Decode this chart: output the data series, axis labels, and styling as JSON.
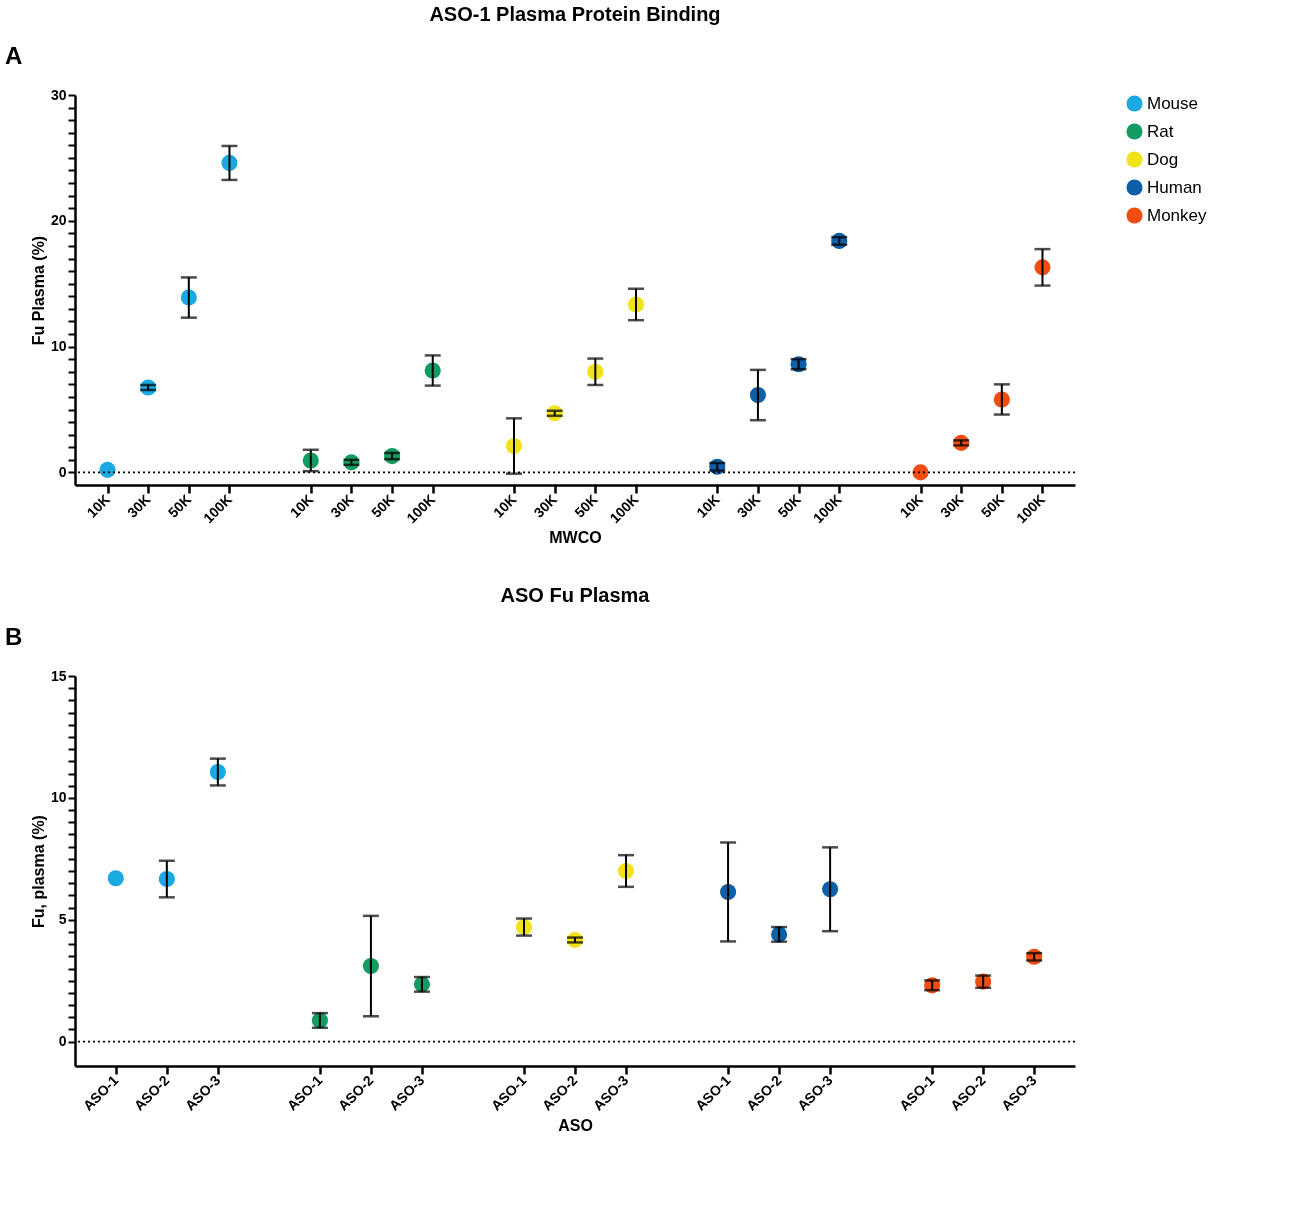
{
  "chart_data": [
    {
      "type": "scatter",
      "title": "ASO-1 Plasma Protein Binding",
      "xlabel": "MWCO",
      "ylabel": "Fu Plasma (%)",
      "annotations": [
        "A"
      ],
      "categories": [
        "10K",
        "30K",
        "50K",
        "100K",
        null,
        "10K",
        "30K",
        "50K",
        "100K",
        null,
        "10K",
        "30K",
        "50K",
        "100K",
        null,
        "10K",
        "30K",
        "50K",
        "100K",
        null,
        "10K",
        "30K",
        "50K",
        "100K"
      ],
      "series": [
        {
          "name": "Mouse",
          "color": "#1ba9e1",
          "values": [
            0.2,
            6.75,
            13.9,
            24.6,
            null,
            null,
            null,
            null,
            null,
            null,
            null,
            null,
            null,
            null,
            null,
            null,
            null,
            null,
            null,
            null,
            null,
            null,
            null,
            null
          ],
          "errors": [
            null,
            0.2,
            1.6,
            1.35,
            null,
            null,
            null,
            null,
            null,
            null,
            null,
            null,
            null,
            null,
            null,
            null,
            null,
            null,
            null,
            null,
            null,
            null,
            null,
            null
          ]
        },
        {
          "name": "Rat",
          "color": "#139b61",
          "values": [
            null,
            null,
            null,
            null,
            null,
            0.95,
            0.8,
            1.3,
            8.1,
            null,
            null,
            null,
            null,
            null,
            null,
            null,
            null,
            null,
            null,
            null,
            null,
            null,
            null,
            null
          ],
          "errors": [
            null,
            null,
            null,
            null,
            null,
            0.85,
            0.2,
            0.25,
            1.2,
            null,
            null,
            null,
            null,
            null,
            null,
            null,
            null,
            null,
            null,
            null,
            null,
            null,
            null,
            null
          ]
        },
        {
          "name": "Dog",
          "color": "#f0e31a",
          "values": [
            null,
            null,
            null,
            null,
            null,
            null,
            null,
            null,
            null,
            null,
            2.1,
            4.7,
            8.0,
            13.35,
            null,
            null,
            null,
            null,
            null,
            null,
            null,
            null,
            null,
            null
          ],
          "errors": [
            null,
            null,
            null,
            null,
            null,
            null,
            null,
            null,
            null,
            null,
            2.2,
            0.2,
            1.05,
            1.25,
            null,
            null,
            null,
            null,
            null,
            null,
            null,
            null,
            null,
            null
          ]
        },
        {
          "name": "Human",
          "color": "#0e5fa8",
          "values": [
            null,
            null,
            null,
            null,
            null,
            null,
            null,
            null,
            null,
            null,
            null,
            null,
            null,
            null,
            null,
            0.45,
            6.15,
            8.6,
            18.4,
            null,
            null,
            null,
            null,
            null
          ],
          "errors": [
            null,
            null,
            null,
            null,
            null,
            null,
            null,
            null,
            null,
            null,
            null,
            null,
            null,
            null,
            null,
            0.3,
            2.0,
            0.4,
            0.3,
            null,
            null,
            null,
            null,
            null
          ]
        },
        {
          "name": "Monkey",
          "color": "#ef4d12",
          "values": [
            null,
            null,
            null,
            null,
            null,
            null,
            null,
            null,
            null,
            null,
            null,
            null,
            null,
            null,
            null,
            null,
            null,
            null,
            null,
            null,
            0.0,
            2.35,
            5.8,
            16.3
          ],
          "errors": [
            null,
            null,
            null,
            null,
            null,
            null,
            null,
            null,
            null,
            null,
            null,
            null,
            null,
            null,
            null,
            null,
            null,
            null,
            null,
            null,
            null,
            0.2,
            1.2,
            1.45
          ]
        }
      ],
      "ylim": [
        -1,
        30
      ],
      "yticks": [
        0,
        {
          "value": 1,
          "label": null
        },
        {
          "value": 2,
          "label": null
        },
        {
          "value": 3,
          "label": null
        },
        {
          "value": 4,
          "label": null
        },
        {
          "value": 5,
          "label": null
        },
        {
          "value": 6,
          "label": null
        },
        {
          "value": 7,
          "label": null
        },
        {
          "value": 8,
          "label": null
        },
        {
          "value": 9,
          "label": null
        },
        10,
        {
          "value": 11,
          "label": null
        },
        {
          "value": 12,
          "label": null
        },
        {
          "value": 13,
          "label": null
        },
        {
          "value": 14,
          "label": null
        },
        {
          "value": 15,
          "label": null
        },
        {
          "value": 16,
          "label": null
        },
        {
          "value": 17,
          "label": null
        },
        {
          "value": 18,
          "label": null
        },
        {
          "value": 19,
          "label": null
        },
        20,
        {
          "value": 21,
          "label": null
        },
        {
          "value": 22,
          "label": null
        },
        {
          "value": 23,
          "label": null
        },
        {
          "value": 24,
          "label": null
        },
        {
          "value": 25,
          "label": null
        },
        {
          "value": 26,
          "label": null
        },
        {
          "value": 27,
          "label": null
        },
        {
          "value": 28,
          "label": null
        },
        {
          "value": 29,
          "label": null
        },
        30
      ],
      "ref_lines": [
        {
          "axis": "y",
          "value": 0,
          "line_style": "dotted"
        }
      ],
      "legend": "right",
      "marker": "circle"
    },
    {
      "type": "scatter",
      "title": "ASO Fu Plasma",
      "xlabel": "ASO",
      "ylabel": "Fu, plasma (%)",
      "annotations": [
        "B"
      ],
      "categories": [
        "ASO-1",
        "ASO-2",
        "ASO-3",
        null,
        "ASO-1",
        "ASO-2",
        "ASO-3",
        null,
        "ASO-1",
        "ASO-2",
        "ASO-3",
        null,
        "ASO-1",
        "ASO-2",
        "ASO-3",
        null,
        "ASO-1",
        "ASO-2",
        "ASO-3"
      ],
      "series": [
        {
          "name": "Mouse",
          "color": "#1ba9e1",
          "values": [
            6.7,
            6.67,
            11.06,
            null,
            null,
            null,
            null,
            null,
            null,
            null,
            null,
            null,
            null,
            null,
            null,
            null,
            null,
            null,
            null
          ],
          "errors": [
            null,
            0.75,
            0.55,
            null,
            null,
            null,
            null,
            null,
            null,
            null,
            null,
            null,
            null,
            null,
            null,
            null,
            null,
            null,
            null
          ]
        },
        {
          "name": "Rat",
          "color": "#139b61",
          "values": [
            null,
            null,
            null,
            null,
            0.87,
            3.1,
            2.35,
            null,
            null,
            null,
            null,
            null,
            null,
            null,
            null,
            null,
            null,
            null,
            null
          ],
          "errors": [
            null,
            null,
            null,
            null,
            0.3,
            2.06,
            0.3,
            null,
            null,
            null,
            null,
            null,
            null,
            null,
            null,
            null,
            null,
            null,
            null
          ]
        },
        {
          "name": "Dog",
          "color": "#f0e31a",
          "values": [
            null,
            null,
            null,
            null,
            null,
            null,
            null,
            null,
            4.7,
            4.17,
            7.0,
            null,
            null,
            null,
            null,
            null,
            null,
            null,
            null
          ],
          "errors": [
            null,
            null,
            null,
            null,
            null,
            null,
            null,
            null,
            0.35,
            0.1,
            0.65,
            null,
            null,
            null,
            null,
            null,
            null,
            null,
            null
          ]
        },
        {
          "name": "Human",
          "color": "#0e5fa8",
          "values": [
            null,
            null,
            null,
            null,
            null,
            null,
            null,
            null,
            null,
            null,
            null,
            null,
            6.14,
            4.4,
            6.25,
            null,
            null,
            null,
            null
          ],
          "errors": [
            null,
            null,
            null,
            null,
            null,
            null,
            null,
            null,
            null,
            null,
            null,
            null,
            2.03,
            0.3,
            1.72,
            null,
            null,
            null,
            null
          ]
        },
        {
          "name": "Monkey",
          "color": "#ef4d12",
          "values": [
            null,
            null,
            null,
            null,
            null,
            null,
            null,
            null,
            null,
            null,
            null,
            null,
            null,
            null,
            null,
            null,
            2.31,
            2.46,
            3.48
          ],
          "errors": [
            null,
            null,
            null,
            null,
            null,
            null,
            null,
            null,
            null,
            null,
            null,
            null,
            null,
            null,
            null,
            null,
            0.2,
            0.25,
            0.15
          ]
        }
      ],
      "ylim": [
        -1,
        15
      ],
      "yticks": [
        0,
        {
          "value": 0.5,
          "label": null
        },
        {
          "value": 1,
          "label": null
        },
        {
          "value": 1.5,
          "label": null
        },
        {
          "value": 2,
          "label": null
        },
        {
          "value": 2.5,
          "label": null
        },
        {
          "value": 3,
          "label": null
        },
        {
          "value": 3.5,
          "label": null
        },
        {
          "value": 4,
          "label": null
        },
        {
          "value": 4.5,
          "label": null
        },
        5,
        {
          "value": 5.5,
          "label": null
        },
        {
          "value": 6,
          "label": null
        },
        {
          "value": 6.5,
          "label": null
        },
        {
          "value": 7,
          "label": null
        },
        {
          "value": 7.5,
          "label": null
        },
        {
          "value": 8,
          "label": null
        },
        {
          "value": 8.5,
          "label": null
        },
        {
          "value": 9,
          "label": null
        },
        {
          "value": 9.5,
          "label": null
        },
        10,
        {
          "value": 10.5,
          "label": null
        },
        {
          "value": 11,
          "label": null
        },
        {
          "value": 11.5,
          "label": null
        },
        {
          "value": 12,
          "label": null
        },
        {
          "value": 12.5,
          "label": null
        },
        {
          "value": 13,
          "label": null
        },
        {
          "value": 13.5,
          "label": null
        },
        {
          "value": 14,
          "label": null
        },
        {
          "value": 14.5,
          "label": null
        },
        15
      ],
      "ref_lines": [
        {
          "axis": "y",
          "value": 0,
          "line_style": "dotted"
        }
      ],
      "legend": "right",
      "marker": "circle"
    }
  ]
}
